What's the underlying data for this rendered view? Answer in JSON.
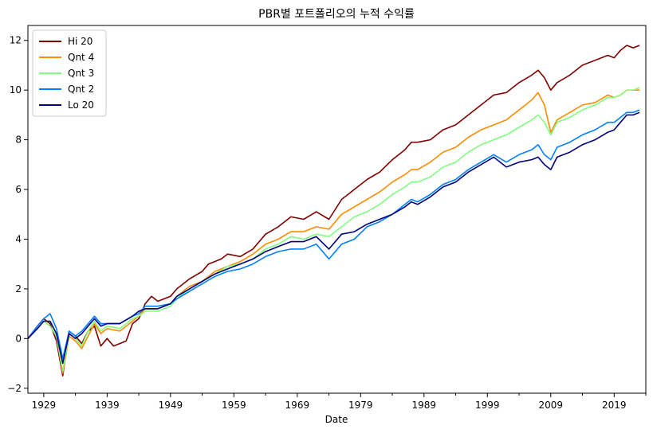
{
  "chart_data": {
    "type": "line",
    "title": "PBR별 포트폴리오의 누적 수익률",
    "xlabel": "Date",
    "ylabel": "",
    "xlim": [
      1926.5,
      2024.0
    ],
    "ylim": [
      -2.2,
      12.6
    ],
    "x_ticks_major": [
      1929,
      1939,
      1949,
      1959,
      1969,
      1979,
      1989,
      1999,
      2009,
      2019
    ],
    "x_ticks_minor": [
      1934,
      1944,
      1954,
      1964,
      1974,
      1984,
      1994,
      2004,
      2014,
      2024
    ],
    "y_ticks": [
      -2,
      0,
      2,
      4,
      6,
      8,
      10,
      12
    ],
    "grid": false,
    "legend_position": "top-left",
    "series": [
      {
        "name": "Hi 20",
        "color": "#7f0000",
        "points": [
          [
            1926.5,
            0
          ],
          [
            1928,
            0.5
          ],
          [
            1929,
            0.8
          ],
          [
            1930,
            0.6
          ],
          [
            1931,
            -0.1
          ],
          [
            1932,
            -1.5
          ],
          [
            1933,
            0.3
          ],
          [
            1934,
            0.1
          ],
          [
            1935,
            -0.2
          ],
          [
            1936,
            0.3
          ],
          [
            1937,
            0.5
          ],
          [
            1938,
            -0.3
          ],
          [
            1939,
            0.0
          ],
          [
            1940,
            -0.3
          ],
          [
            1941,
            -0.2
          ],
          [
            1942,
            -0.1
          ],
          [
            1943,
            0.6
          ],
          [
            1944,
            0.8
          ],
          [
            1945,
            1.4
          ],
          [
            1946,
            1.7
          ],
          [
            1947,
            1.5
          ],
          [
            1948,
            1.6
          ],
          [
            1949,
            1.7
          ],
          [
            1950,
            2.0
          ],
          [
            1952,
            2.4
          ],
          [
            1954,
            2.7
          ],
          [
            1955,
            3.0
          ],
          [
            1957,
            3.2
          ],
          [
            1958,
            3.4
          ],
          [
            1960,
            3.3
          ],
          [
            1962,
            3.6
          ],
          [
            1964,
            4.2
          ],
          [
            1966,
            4.5
          ],
          [
            1968,
            4.9
          ],
          [
            1970,
            4.8
          ],
          [
            1972,
            5.1
          ],
          [
            1974,
            4.8
          ],
          [
            1976,
            5.6
          ],
          [
            1978,
            6.0
          ],
          [
            1980,
            6.4
          ],
          [
            1982,
            6.7
          ],
          [
            1984,
            7.2
          ],
          [
            1986,
            7.6
          ],
          [
            1987,
            7.9
          ],
          [
            1988,
            7.9
          ],
          [
            1990,
            8.0
          ],
          [
            1992,
            8.4
          ],
          [
            1994,
            8.6
          ],
          [
            1996,
            9.0
          ],
          [
            1998,
            9.4
          ],
          [
            2000,
            9.8
          ],
          [
            2002,
            9.9
          ],
          [
            2004,
            10.3
          ],
          [
            2006,
            10.6
          ],
          [
            2007,
            10.8
          ],
          [
            2008,
            10.5
          ],
          [
            2009,
            10.0
          ],
          [
            2010,
            10.3
          ],
          [
            2012,
            10.6
          ],
          [
            2014,
            11.0
          ],
          [
            2016,
            11.2
          ],
          [
            2018,
            11.4
          ],
          [
            2019,
            11.3
          ],
          [
            2020,
            11.6
          ],
          [
            2021,
            11.8
          ],
          [
            2022,
            11.7
          ],
          [
            2023,
            11.8
          ]
        ]
      },
      {
        "name": "Qnt 4",
        "color": "#ff8c00",
        "points": [
          [
            1926.5,
            0
          ],
          [
            1928,
            0.4
          ],
          [
            1929,
            0.7
          ],
          [
            1930,
            0.5
          ],
          [
            1931,
            0.1
          ],
          [
            1932,
            -1.4
          ],
          [
            1933,
            0.1
          ],
          [
            1934,
            -0.1
          ],
          [
            1935,
            -0.4
          ],
          [
            1936,
            0.1
          ],
          [
            1937,
            0.6
          ],
          [
            1938,
            0.2
          ],
          [
            1939,
            0.4
          ],
          [
            1941,
            0.3
          ],
          [
            1943,
            0.7
          ],
          [
            1944,
            0.9
          ],
          [
            1945,
            1.2
          ],
          [
            1947,
            1.2
          ],
          [
            1949,
            1.4
          ],
          [
            1950,
            1.7
          ],
          [
            1952,
            2.1
          ],
          [
            1954,
            2.3
          ],
          [
            1956,
            2.7
          ],
          [
            1958,
            2.9
          ],
          [
            1960,
            3.1
          ],
          [
            1962,
            3.4
          ],
          [
            1964,
            3.8
          ],
          [
            1966,
            4.0
          ],
          [
            1968,
            4.3
          ],
          [
            1970,
            4.3
          ],
          [
            1972,
            4.5
          ],
          [
            1974,
            4.4
          ],
          [
            1976,
            5.0
          ],
          [
            1978,
            5.3
          ],
          [
            1980,
            5.6
          ],
          [
            1982,
            5.9
          ],
          [
            1984,
            6.3
          ],
          [
            1986,
            6.6
          ],
          [
            1987,
            6.8
          ],
          [
            1988,
            6.8
          ],
          [
            1990,
            7.1
          ],
          [
            1992,
            7.5
          ],
          [
            1994,
            7.7
          ],
          [
            1996,
            8.1
          ],
          [
            1998,
            8.4
          ],
          [
            2000,
            8.6
          ],
          [
            2002,
            8.8
          ],
          [
            2004,
            9.2
          ],
          [
            2006,
            9.6
          ],
          [
            2007,
            9.9
          ],
          [
            2008,
            9.4
          ],
          [
            2009,
            8.3
          ],
          [
            2010,
            8.8
          ],
          [
            2012,
            9.1
          ],
          [
            2014,
            9.4
          ],
          [
            2016,
            9.5
          ],
          [
            2018,
            9.8
          ],
          [
            2019,
            9.7
          ],
          [
            2020,
            9.8
          ],
          [
            2021,
            10.0
          ],
          [
            2022,
            10.0
          ],
          [
            2023,
            10.0
          ]
        ]
      },
      {
        "name": "Qnt 3",
        "color": "#7fff7f",
        "points": [
          [
            1926.5,
            0
          ],
          [
            1928,
            0.4
          ],
          [
            1929,
            0.7
          ],
          [
            1930,
            0.5
          ],
          [
            1931,
            0.1
          ],
          [
            1932,
            -1.3
          ],
          [
            1933,
            0.2
          ],
          [
            1934,
            0.0
          ],
          [
            1935,
            -0.3
          ],
          [
            1936,
            0.3
          ],
          [
            1937,
            0.7
          ],
          [
            1938,
            0.3
          ],
          [
            1939,
            0.5
          ],
          [
            1941,
            0.4
          ],
          [
            1943,
            0.8
          ],
          [
            1944,
            0.9
          ],
          [
            1945,
            1.1
          ],
          [
            1947,
            1.1
          ],
          [
            1949,
            1.3
          ],
          [
            1950,
            1.6
          ],
          [
            1952,
            2.0
          ],
          [
            1954,
            2.3
          ],
          [
            1956,
            2.6
          ],
          [
            1958,
            2.9
          ],
          [
            1960,
            3.0
          ],
          [
            1962,
            3.2
          ],
          [
            1964,
            3.6
          ],
          [
            1966,
            3.8
          ],
          [
            1968,
            4.1
          ],
          [
            1970,
            4.0
          ],
          [
            1972,
            4.2
          ],
          [
            1974,
            4.1
          ],
          [
            1976,
            4.5
          ],
          [
            1978,
            4.9
          ],
          [
            1980,
            5.1
          ],
          [
            1982,
            5.4
          ],
          [
            1984,
            5.8
          ],
          [
            1986,
            6.1
          ],
          [
            1987,
            6.3
          ],
          [
            1988,
            6.3
          ],
          [
            1990,
            6.5
          ],
          [
            1992,
            6.9
          ],
          [
            1994,
            7.1
          ],
          [
            1996,
            7.5
          ],
          [
            1998,
            7.8
          ],
          [
            2000,
            8.0
          ],
          [
            2002,
            8.2
          ],
          [
            2004,
            8.5
          ],
          [
            2006,
            8.8
          ],
          [
            2007,
            9.0
          ],
          [
            2008,
            8.7
          ],
          [
            2009,
            8.2
          ],
          [
            2010,
            8.7
          ],
          [
            2012,
            8.9
          ],
          [
            2014,
            9.2
          ],
          [
            2016,
            9.4
          ],
          [
            2018,
            9.7
          ],
          [
            2019,
            9.7
          ],
          [
            2020,
            9.8
          ],
          [
            2021,
            10.0
          ],
          [
            2022,
            10.0
          ],
          [
            2023,
            10.1
          ]
        ]
      },
      {
        "name": "Qnt 2",
        "color": "#0080ff",
        "points": [
          [
            1926.5,
            0
          ],
          [
            1928,
            0.5
          ],
          [
            1929,
            0.8
          ],
          [
            1930,
            1.0
          ],
          [
            1931,
            0.4
          ],
          [
            1932,
            -0.8
          ],
          [
            1933,
            0.3
          ],
          [
            1934,
            0.1
          ],
          [
            1935,
            0.3
          ],
          [
            1936,
            0.6
          ],
          [
            1937,
            0.9
          ],
          [
            1938,
            0.6
          ],
          [
            1939,
            0.6
          ],
          [
            1941,
            0.6
          ],
          [
            1943,
            0.9
          ],
          [
            1944,
            1.0
          ],
          [
            1945,
            1.3
          ],
          [
            1947,
            1.3
          ],
          [
            1949,
            1.4
          ],
          [
            1950,
            1.6
          ],
          [
            1952,
            1.9
          ],
          [
            1954,
            2.2
          ],
          [
            1956,
            2.5
          ],
          [
            1958,
            2.7
          ],
          [
            1960,
            2.8
          ],
          [
            1962,
            3.0
          ],
          [
            1964,
            3.3
          ],
          [
            1966,
            3.5
          ],
          [
            1968,
            3.6
          ],
          [
            1970,
            3.6
          ],
          [
            1972,
            3.8
          ],
          [
            1974,
            3.2
          ],
          [
            1976,
            3.8
          ],
          [
            1978,
            4.0
          ],
          [
            1980,
            4.5
          ],
          [
            1982,
            4.7
          ],
          [
            1984,
            5.0
          ],
          [
            1986,
            5.4
          ],
          [
            1987,
            5.6
          ],
          [
            1988,
            5.5
          ],
          [
            1990,
            5.8
          ],
          [
            1992,
            6.2
          ],
          [
            1994,
            6.4
          ],
          [
            1996,
            6.8
          ],
          [
            1998,
            7.1
          ],
          [
            2000,
            7.4
          ],
          [
            2002,
            7.1
          ],
          [
            2004,
            7.4
          ],
          [
            2006,
            7.6
          ],
          [
            2007,
            7.8
          ],
          [
            2008,
            7.4
          ],
          [
            2009,
            7.2
          ],
          [
            2010,
            7.7
          ],
          [
            2012,
            7.9
          ],
          [
            2014,
            8.2
          ],
          [
            2016,
            8.4
          ],
          [
            2018,
            8.7
          ],
          [
            2019,
            8.7
          ],
          [
            2020,
            8.9
          ],
          [
            2021,
            9.1
          ],
          [
            2022,
            9.1
          ],
          [
            2023,
            9.2
          ]
        ]
      },
      {
        "name": "Lo 20",
        "color": "#00007f",
        "points": [
          [
            1926.5,
            0
          ],
          [
            1928,
            0.4
          ],
          [
            1929,
            0.7
          ],
          [
            1930,
            0.7
          ],
          [
            1931,
            0.2
          ],
          [
            1932,
            -1.0
          ],
          [
            1933,
            0.2
          ],
          [
            1934,
            0.0
          ],
          [
            1935,
            0.2
          ],
          [
            1936,
            0.5
          ],
          [
            1937,
            0.8
          ],
          [
            1938,
            0.5
          ],
          [
            1939,
            0.6
          ],
          [
            1941,
            0.6
          ],
          [
            1943,
            0.9
          ],
          [
            1944,
            1.1
          ],
          [
            1945,
            1.2
          ],
          [
            1947,
            1.2
          ],
          [
            1949,
            1.4
          ],
          [
            1950,
            1.7
          ],
          [
            1952,
            2.0
          ],
          [
            1954,
            2.3
          ],
          [
            1956,
            2.6
          ],
          [
            1958,
            2.8
          ],
          [
            1960,
            3.0
          ],
          [
            1962,
            3.2
          ],
          [
            1964,
            3.5
          ],
          [
            1966,
            3.7
          ],
          [
            1968,
            3.9
          ],
          [
            1970,
            3.9
          ],
          [
            1972,
            4.1
          ],
          [
            1974,
            3.6
          ],
          [
            1976,
            4.2
          ],
          [
            1978,
            4.3
          ],
          [
            1980,
            4.6
          ],
          [
            1982,
            4.8
          ],
          [
            1984,
            5.0
          ],
          [
            1986,
            5.3
          ],
          [
            1987,
            5.5
          ],
          [
            1988,
            5.4
          ],
          [
            1990,
            5.7
          ],
          [
            1992,
            6.1
          ],
          [
            1994,
            6.3
          ],
          [
            1996,
            6.7
          ],
          [
            1998,
            7.0
          ],
          [
            2000,
            7.3
          ],
          [
            2002,
            6.9
          ],
          [
            2004,
            7.1
          ],
          [
            2006,
            7.2
          ],
          [
            2007,
            7.3
          ],
          [
            2008,
            7.0
          ],
          [
            2009,
            6.8
          ],
          [
            2010,
            7.3
          ],
          [
            2012,
            7.5
          ],
          [
            2014,
            7.8
          ],
          [
            2016,
            8.0
          ],
          [
            2018,
            8.3
          ],
          [
            2019,
            8.4
          ],
          [
            2020,
            8.7
          ],
          [
            2021,
            9.0
          ],
          [
            2022,
            9.0
          ],
          [
            2023,
            9.1
          ]
        ]
      }
    ]
  }
}
